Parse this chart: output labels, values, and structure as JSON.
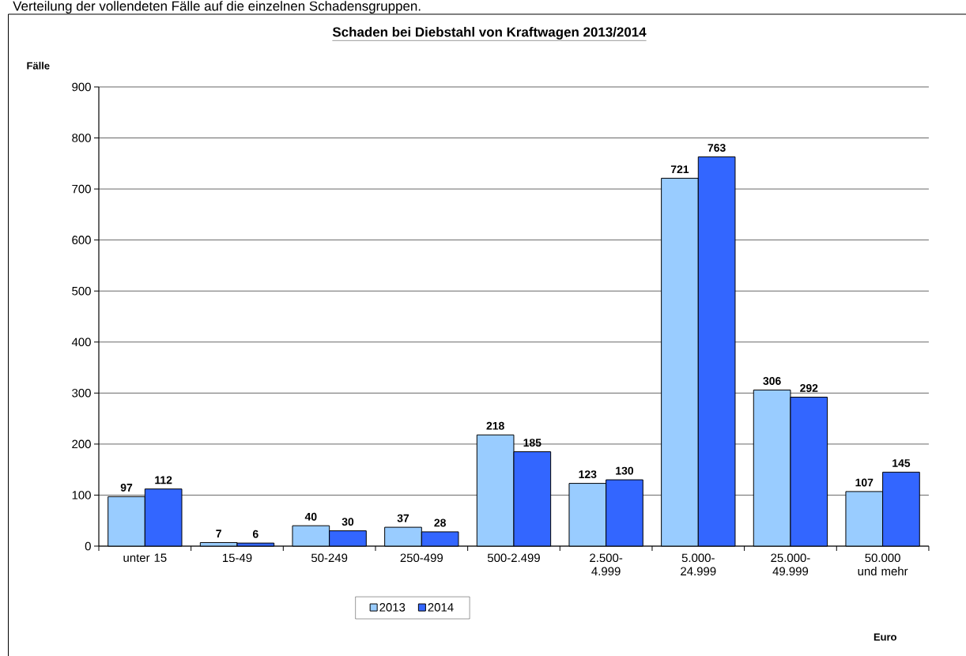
{
  "chart_data": {
    "type": "bar",
    "title": "Schaden bei Diebstahl von Kraftwagen 2013/2014",
    "annotations": [
      "Verteilung der vollendeten Fälle auf die einzelnen Schadensgruppen.",
      "Euro"
    ],
    "ylabel": "Fälle",
    "categories": [
      "unter 15",
      "15-49",
      "50-249",
      "250-499",
      "500-2.499",
      "2.500- 4.999",
      "5.000- 24.999",
      "25.000- 49.999",
      "50.000 und mehr"
    ],
    "series": [
      {
        "name": "2013",
        "color": "#99ccff",
        "values": [
          97,
          7,
          40,
          37,
          218,
          123,
          721,
          306,
          107
        ]
      },
      {
        "name": "2014",
        "color": "#3366ff",
        "values": [
          112,
          6,
          30,
          28,
          185,
          130,
          763,
          292,
          145
        ]
      }
    ],
    "ylim": [
      0,
      900
    ],
    "yticks": [
      0,
      100,
      200,
      300,
      400,
      500,
      600,
      700,
      800,
      900
    ],
    "grid": "y",
    "legend": "bottom",
    "data_labels": true
  }
}
